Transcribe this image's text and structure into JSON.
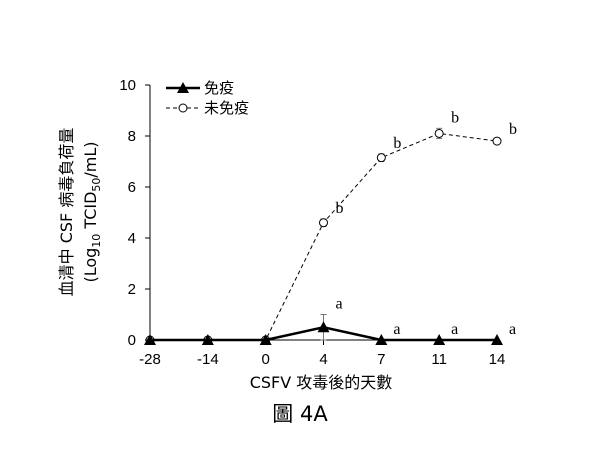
{
  "caption": "圖 4A",
  "chart_data": {
    "type": "line",
    "categories": [
      "-28",
      "-14",
      "0",
      "4",
      "7",
      "11",
      "14"
    ],
    "xlabel": "CSFV 攻毒後的天數",
    "ylabel_line1": "血清中 CSF 病毒負荷量",
    "ylabel_line2_pre": "(Log",
    "ylabel_line2_sub1": "10",
    "ylabel_line2_mid": " TCID",
    "ylabel_line2_sub2": "50",
    "ylabel_line2_post": "/mL)",
    "ylim": [
      0,
      10
    ],
    "yticks": [
      0,
      2,
      4,
      6,
      8,
      10
    ],
    "grid": false,
    "legend_position": "top-left",
    "series": [
      {
        "name": "免疫",
        "style": "solid",
        "marker": "filled-triangle",
        "color": "#000000",
        "values": [
          0,
          0,
          0,
          0.5,
          0,
          0,
          0
        ],
        "errors": [
          0,
          0,
          0,
          0.5,
          0,
          0,
          0
        ],
        "annotations": [
          "",
          "",
          "",
          "a",
          "a",
          "a",
          "a"
        ]
      },
      {
        "name": "未免疫",
        "style": "dashed",
        "marker": "open-circle",
        "color": "#000000",
        "values": [
          0,
          0,
          0,
          4.6,
          7.15,
          8.1,
          7.8
        ],
        "errors": [
          0,
          0,
          0,
          0.15,
          0.15,
          0.2,
          0.05
        ],
        "annotations": [
          "",
          "",
          "",
          "b",
          "b",
          "b",
          "b"
        ]
      }
    ]
  }
}
